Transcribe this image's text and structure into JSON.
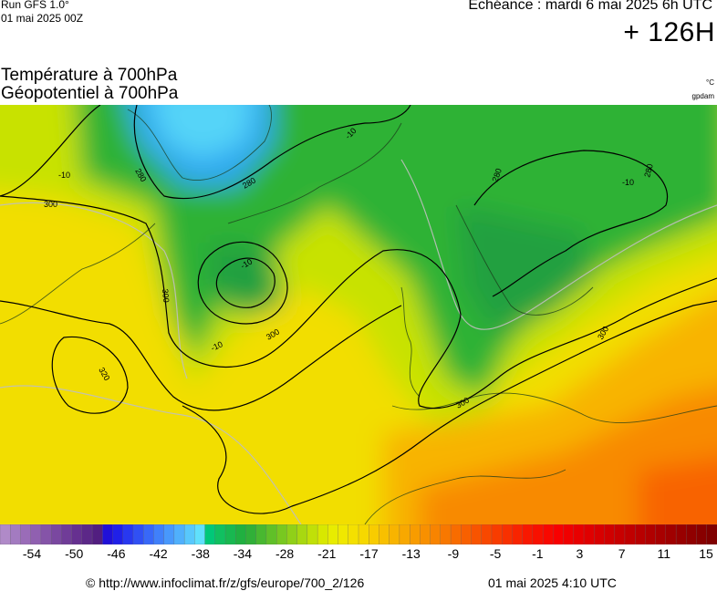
{
  "header": {
    "run": "Run GFS 1.0°",
    "run_date": "01 mai 2025 00Z",
    "echeance": "Echéance : mardi 6 mai 2025 6h UTC",
    "lead_time": "+ 126H",
    "title_line1": "Température à 700hPa",
    "title_line2": "Géopotentiel à 700hPa",
    "unit_temp": "°C",
    "unit_geo": "gpdam"
  },
  "contours": {
    "labels": [
      "280",
      "280",
      "280",
      "280",
      "300",
      "300",
      "300",
      "300",
      "300",
      "320",
      "-10",
      "-10",
      "-10",
      "-10",
      "-10"
    ]
  },
  "colorbar": {
    "labels": [
      "-54",
      "-50",
      "-46",
      "-42",
      "-38",
      "-34",
      "-28",
      "-21",
      "-17",
      "-13",
      "-9",
      "-5",
      "-1",
      "3",
      "7",
      "11",
      "15"
    ],
    "colors": [
      "#b08ac8",
      "#a37bc0",
      "#9a6cb8",
      "#9060b0",
      "#8554a8",
      "#7a48a0",
      "#703c98",
      "#663090",
      "#5c2888",
      "#521e80",
      "#2010d8",
      "#2020e8",
      "#2838f0",
      "#3050f4",
      "#3868f8",
      "#4080fa",
      "#4898fc",
      "#50b0fc",
      "#58c8fc",
      "#60e0fc",
      "#00c878",
      "#10c060",
      "#18b850",
      "#20b040",
      "#30b038",
      "#48b830",
      "#60c028",
      "#78c820",
      "#90d018",
      "#a8d810",
      "#c0e008",
      "#d8e800",
      "#e8ec00",
      "#f0e800",
      "#f4e000",
      "#f6d800",
      "#f8cc00",
      "#f8c000",
      "#f8b400",
      "#f8a800",
      "#f89c00",
      "#f89000",
      "#f88400",
      "#f87800",
      "#f86c00",
      "#f86000",
      "#f85400",
      "#f84800",
      "#f83c00",
      "#f83000",
      "#f82400",
      "#f81800",
      "#f81000",
      "#f80800",
      "#f80000",
      "#f00000",
      "#e80000",
      "#e00000",
      "#d80000",
      "#d00000",
      "#c80000",
      "#c00000",
      "#b80000",
      "#b00000",
      "#a80000",
      "#a00000",
      "#980000",
      "#900000",
      "#880000",
      "#800000"
    ]
  },
  "footer": {
    "url": "© http://www.infoclimat.fr/z/gfs/europe/700_2/126",
    "generated": "01 mai 2025  4:10 UTC"
  }
}
